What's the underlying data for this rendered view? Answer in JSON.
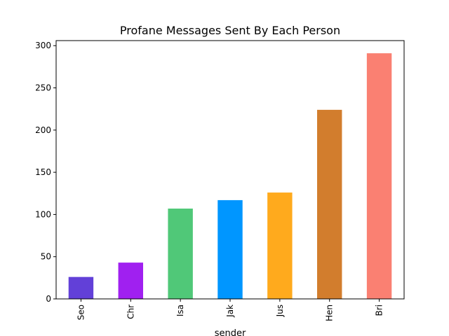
{
  "chart_data": {
    "type": "bar",
    "title": "Profane Messages Sent By Each Person",
    "xlabel": "sender",
    "ylabel": "",
    "categories": [
      "Seo",
      "Chr",
      "Isa",
      "Jak",
      "Jus",
      "Hen",
      "Bri"
    ],
    "values": [
      26,
      43,
      107,
      117,
      126,
      224,
      291
    ],
    "colors": [
      "#6240d8",
      "#a020f0",
      "#50c878",
      "#0096ff",
      "#ffaa1d",
      "#d27d2d",
      "#fa8072"
    ],
    "ylim": [
      0,
      306
    ],
    "yticks": [
      0,
      50,
      100,
      150,
      200,
      250,
      300
    ],
    "grid": false,
    "legend": false
  }
}
